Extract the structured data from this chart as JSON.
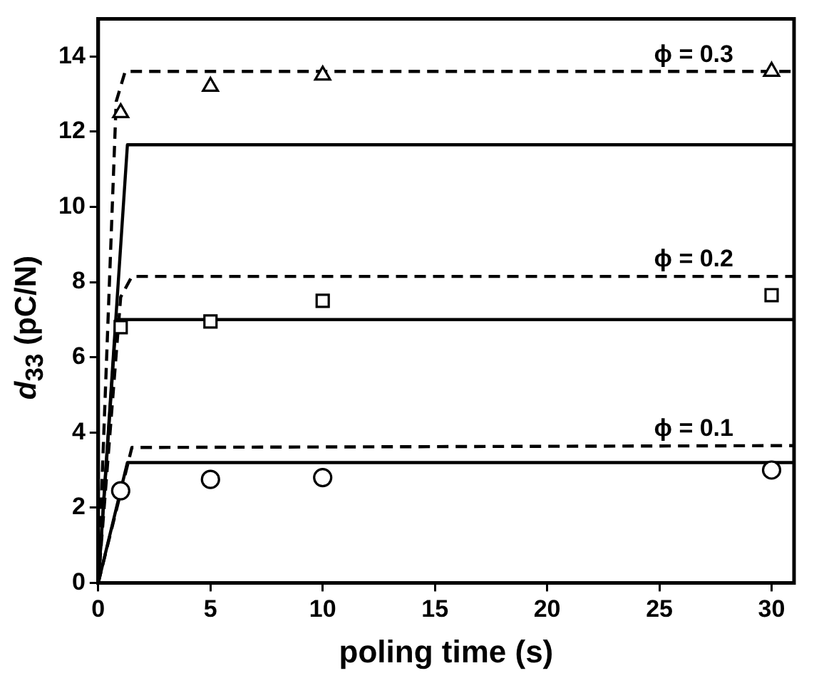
{
  "chart_data": {
    "type": "scatter",
    "xlabel": "poling time (s)",
    "ylabel": "d$_{33}$ (pC/N)",
    "xlim": [
      0,
      31
    ],
    "xticks": [
      0,
      5,
      10,
      15,
      20,
      25,
      30
    ],
    "ylim": [
      0,
      15
    ],
    "yticks": [
      0,
      2,
      4,
      6,
      8,
      10,
      12,
      14
    ],
    "grid": false,
    "legend": false,
    "series": [
      {
        "type": "scatter",
        "marker": "triangle",
        "color": "#000000",
        "x": [
          1,
          5,
          10,
          30
        ],
        "values": [
          12.5,
          13.2,
          13.5,
          13.6
        ]
      },
      {
        "type": "scatter",
        "marker": "square",
        "color": "#000000",
        "x": [
          1,
          5,
          10,
          30
        ],
        "values": [
          6.8,
          6.95,
          7.5,
          7.65
        ]
      },
      {
        "type": "scatter",
        "marker": "circle",
        "color": "#000000",
        "x": [
          1,
          5,
          10,
          30
        ],
        "values": [
          2.45,
          2.75,
          2.8,
          3.0
        ]
      },
      {
        "type": "line",
        "name": "ϕ = 0.3",
        "line_style": "dashed",
        "color": "#000000",
        "x": [
          0,
          0.8,
          1.2,
          31
        ],
        "values": [
          0,
          12.8,
          13.6,
          13.6
        ]
      },
      {
        "type": "line",
        "line_style": "solid",
        "color": "#000000",
        "x": [
          0,
          1.3,
          31
        ],
        "values": [
          0,
          11.65,
          11.65
        ]
      },
      {
        "type": "line",
        "name": "ϕ = 0.2",
        "line_style": "dashed",
        "color": "#000000",
        "x": [
          0,
          1,
          1.5,
          31
        ],
        "values": [
          0,
          7.6,
          8.15,
          8.15
        ]
      },
      {
        "type": "line",
        "line_style": "solid",
        "color": "#000000",
        "x": [
          0,
          0.8,
          31
        ],
        "values": [
          0,
          7.0,
          7.0
        ]
      },
      {
        "type": "line",
        "name": "ϕ = 0.1",
        "line_style": "dashed",
        "color": "#000000",
        "x": [
          0,
          1.5,
          31
        ],
        "values": [
          0,
          3.6,
          3.65
        ]
      },
      {
        "type": "line",
        "line_style": "solid",
        "color": "#000000",
        "x": [
          0,
          1.3,
          31
        ],
        "values": [
          0,
          3.2,
          3.2
        ]
      }
    ]
  }
}
